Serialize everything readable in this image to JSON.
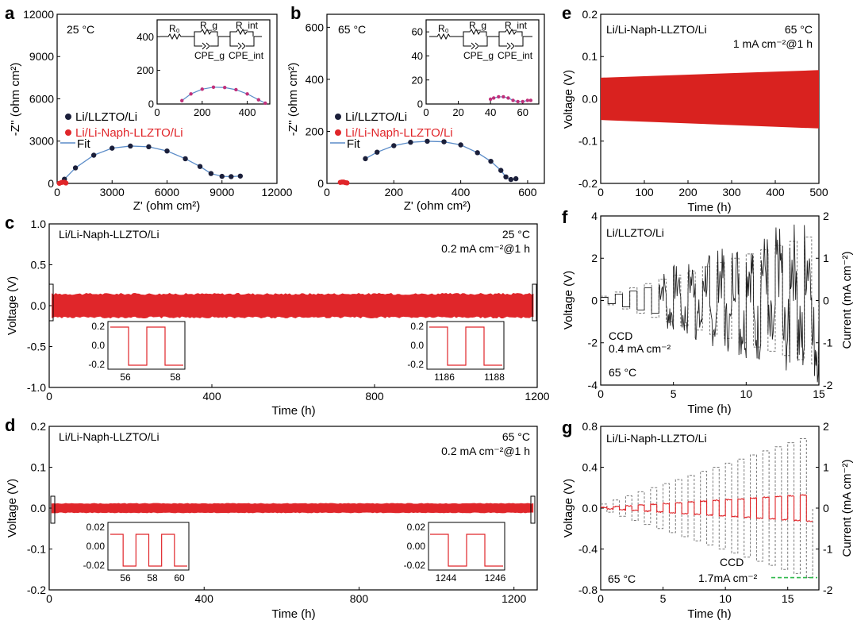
{
  "panels": {
    "a": {
      "label": "a",
      "temp": "25 °C",
      "ylabel": "-Z'' (ohm cm²)",
      "xlabel": "Z' (ohm cm²)"
    },
    "b": {
      "label": "b",
      "temp": "65 °C",
      "ylabel": "-Z'' (ohm cm²)",
      "xlabel": "Z' (ohm cm²)"
    },
    "c": {
      "label": "c",
      "cell": "Li/Li-Naph-LLZTO/Li",
      "temp": "25 °C",
      "cond": "0.2 mA cm⁻²@1 h",
      "ylabel": "Voltage (V)",
      "xlabel": "Time (h)"
    },
    "d": {
      "label": "d",
      "cell": "Li/Li-Naph-LLZTO/Li",
      "temp": "65 °C",
      "cond": "0.2 mA cm⁻²@1 h",
      "ylabel": "Voltage (V)",
      "xlabel": "Time (h)"
    },
    "e": {
      "label": "e",
      "cell": "Li/Li-Naph-LLZTO/Li",
      "temp": "65 °C",
      "cond": "1 mA cm⁻²@1 h",
      "ylabel": "Voltage (V)",
      "xlabel": "Time (h)"
    },
    "f": {
      "label": "f",
      "cell": "Li/LLZTO/Li",
      "ccd": "CCD",
      "ccd_val": "0.4 mA cm⁻²",
      "temp": "65 °C",
      "ylabel": "Voltage (V)",
      "y2label": "Current (mA cm⁻²)",
      "xlabel": "Time (h)"
    },
    "g": {
      "label": "g",
      "cell": "Li/Li-Naph-LLZTO/Li",
      "ccd": "CCD",
      "ccd_val": "1.7mA cm⁻²",
      "temp": "65 °C",
      "ylabel": "Voltage (V)",
      "y2label": "Current (mA cm⁻²)",
      "xlabel": "Time (h)"
    }
  },
  "legend": {
    "s1": "Li/LLZTO/Li",
    "s2": "Li/Li-Naph-LLZTO/Li",
    "fit": "Fit"
  },
  "circuit": {
    "r0": "R₀",
    "rg": "R_g",
    "rint": "R_int",
    "cpeg": "CPE_g",
    "cpeint": "CPE_int"
  },
  "colors": {
    "black_series": "#1b1f3a",
    "red_series": "#e0262a",
    "fit": "#5b8cc8",
    "current": "#7a7a7a",
    "ccd_line": "#2db84a"
  },
  "chart_data": [
    {
      "panel": "a",
      "type": "scatter",
      "title": "",
      "xlabel": "Z' (ohm cm²)",
      "ylabel": "-Z'' (ohm cm²)",
      "xlim": [
        0,
        12000
      ],
      "ylim": [
        0,
        12000
      ],
      "x_ticks": [
        "0",
        "3000",
        "6000",
        "9000",
        "12000"
      ],
      "y_ticks": [
        "0",
        "3000",
        "6000",
        "9000",
        "12000"
      ],
      "series": [
        {
          "name": "Li/LLZTO/Li",
          "x": [
            400,
            1000,
            2000,
            3000,
            4000,
            5000,
            6000,
            7000,
            7800,
            8400,
            9000,
            9500,
            10000
          ],
          "y": [
            300,
            1100,
            2000,
            2500,
            2650,
            2600,
            2300,
            1750,
            1200,
            700,
            500,
            480,
            520
          ]
        },
        {
          "name": "Li/Li-Naph-LLZTO/Li",
          "x": [
            120,
            250,
            380,
            480
          ],
          "y": [
            10,
            70,
            90,
            30
          ]
        },
        {
          "name": "Fit"
        }
      ],
      "inset": {
        "xlim": [
          0,
          500
        ],
        "ylim": [
          0,
          500
        ],
        "x_ticks": [
          "0",
          "200",
          "400"
        ],
        "y_ticks": [
          "0",
          "200",
          "400"
        ],
        "x": [
          110,
          150,
          200,
          250,
          300,
          350,
          400,
          450,
          480
        ],
        "y": [
          20,
          60,
          88,
          100,
          98,
          85,
          60,
          25,
          5
        ]
      }
    },
    {
      "panel": "b",
      "type": "scatter",
      "title": "",
      "xlabel": "Z' (ohm cm²)",
      "ylabel": "-Z'' (ohm cm²)",
      "xlim": [
        0,
        650
      ],
      "ylim": [
        0,
        650
      ],
      "x_ticks": [
        "0",
        "200",
        "400",
        "600"
      ],
      "y_ticks": [
        "0",
        "200",
        "400",
        "600"
      ],
      "series": [
        {
          "name": "Li/LLZTO/Li",
          "x": [
            115,
            150,
            200,
            250,
            300,
            350,
            400,
            450,
            490,
            520,
            535,
            550,
            565
          ],
          "y": [
            95,
            120,
            145,
            158,
            162,
            160,
            148,
            118,
            85,
            50,
            25,
            15,
            18
          ]
        },
        {
          "name": "Li/Li-Naph-LLZTO/Li",
          "x": [
            40,
            45,
            50,
            55,
            60
          ],
          "y": [
            4,
            5,
            5,
            3,
            2
          ]
        },
        {
          "name": "Fit"
        }
      ],
      "inset": {
        "xlim": [
          0,
          70
        ],
        "ylim": [
          0,
          70
        ],
        "x_ticks": [
          "0",
          "20",
          "40",
          "60"
        ],
        "y_ticks": [
          "0",
          "20",
          "40",
          "60"
        ],
        "x": [
          40,
          42,
          45,
          48,
          51,
          54,
          57,
          60,
          63,
          65
        ],
        "y": [
          4,
          5,
          6,
          6,
          5,
          3,
          2,
          2,
          3,
          3
        ]
      }
    },
    {
      "panel": "c",
      "type": "line",
      "title": "",
      "xlabel": "Time (h)",
      "ylabel": "Voltage (V)",
      "xlim": [
        0,
        1200
      ],
      "ylim": [
        -1.0,
        1.0
      ],
      "x_ticks": [
        "0",
        "400",
        "800",
        "1200"
      ],
      "y_ticks": [
        "-1.0",
        "-0.5",
        "0.0",
        "0.5",
        "1.0"
      ],
      "amplitude": 0.15,
      "insets": [
        {
          "x_ticks": [
            "56",
            "58"
          ],
          "y_ticks": [
            "-0.2",
            "0.0",
            "0.2"
          ]
        },
        {
          "x_ticks": [
            "1186",
            "1188"
          ],
          "y_ticks": [
            "-0.2",
            "0.0",
            "0.2"
          ]
        }
      ]
    },
    {
      "panel": "d",
      "type": "line",
      "title": "",
      "xlabel": "Time (h)",
      "ylabel": "Voltage (V)",
      "xlim": [
        0,
        1260
      ],
      "ylim": [
        -0.2,
        0.2
      ],
      "x_ticks": [
        "0",
        "400",
        "800",
        "1200"
      ],
      "y_ticks": [
        "-0.2",
        "-0.1",
        "0.0",
        "0.1",
        "0.2"
      ],
      "amplitude": 0.012,
      "insets": [
        {
          "x_ticks": [
            "56",
            "58",
            "60"
          ],
          "y_ticks": [
            "-0.02",
            "0.00",
            "0.02"
          ]
        },
        {
          "x_ticks": [
            "1244",
            "1246"
          ],
          "y_ticks": [
            "-0.02",
            "0.00",
            "0.02"
          ]
        }
      ]
    },
    {
      "panel": "e",
      "type": "area",
      "title": "",
      "xlabel": "Time (h)",
      "ylabel": "Voltage (V)",
      "xlim": [
        0,
        500
      ],
      "ylim": [
        -0.2,
        0.2
      ],
      "x_ticks": [
        "0",
        "100",
        "200",
        "300",
        "400",
        "500"
      ],
      "y_ticks": [
        "-0.2",
        "-0.1",
        "0.0",
        "0.1",
        "0.2"
      ],
      "upper": [
        0.05,
        0.068
      ],
      "lower": [
        -0.05,
        -0.07
      ]
    },
    {
      "panel": "f",
      "type": "line",
      "title": "",
      "xlabel": "Time (h)",
      "ylabel": "Voltage (V)",
      "y2label": "Current (mA cm⁻²)",
      "xlim": [
        0,
        15
      ],
      "ylim": [
        -4,
        4
      ],
      "y2lim": [
        -2,
        2
      ],
      "x_ticks": [
        "0",
        "5",
        "10",
        "15"
      ],
      "y_ticks": [
        "-4",
        "-2",
        "0",
        "2",
        "4"
      ],
      "y2_ticks": [
        "-2",
        "-1",
        "0",
        "1",
        "2"
      ],
      "current_steps": [
        0.1,
        0.2,
        0.3,
        0.4,
        0.5,
        0.6,
        0.7,
        0.8,
        0.9,
        1.0,
        1.1,
        1.2,
        1.3,
        1.4,
        1.5
      ]
    },
    {
      "panel": "g",
      "type": "line",
      "title": "",
      "xlabel": "Time (h)",
      "ylabel": "Voltage (V)",
      "y2label": "Current (mA cm⁻²)",
      "xlim": [
        0,
        17.5
      ],
      "ylim": [
        -0.8,
        0.8
      ],
      "y2lim": [
        -2,
        2
      ],
      "x_ticks": [
        "0",
        "5",
        "10",
        "15"
      ],
      "y_ticks": [
        "-0.8",
        "-0.4",
        "0.0",
        "0.4",
        "0.8"
      ],
      "y2_ticks": [
        "-2",
        "-1",
        "0",
        "1",
        "2"
      ],
      "current_steps": [
        0.1,
        0.2,
        0.3,
        0.4,
        0.5,
        0.6,
        0.7,
        0.8,
        0.9,
        1.0,
        1.1,
        1.2,
        1.3,
        1.4,
        1.5,
        1.6,
        1.7
      ],
      "ccd_line_value": 1.7
    }
  ]
}
